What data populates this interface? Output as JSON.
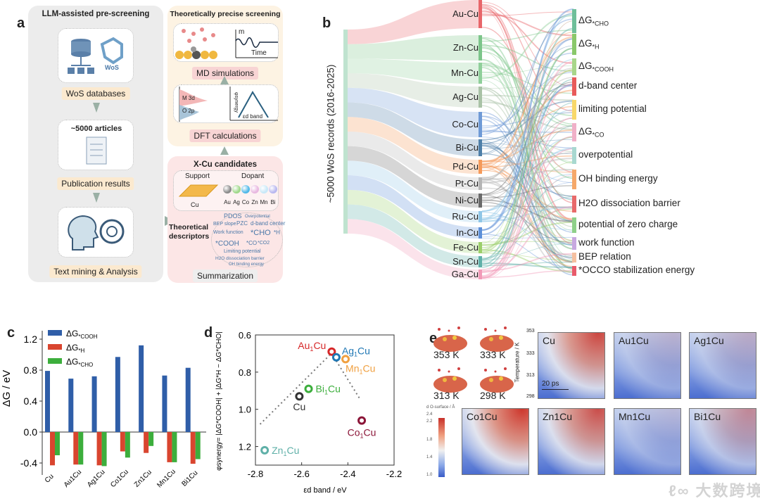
{
  "panel_labels": {
    "a": "a",
    "b": "b",
    "c": "c",
    "d": "d",
    "e": "e"
  },
  "panel_a": {
    "prescreen_title": "LLM-assisted pre-screening",
    "wos_logo": "WoS",
    "wos_label": "WoS databases",
    "articles_title": "~5000 articles",
    "publication_label": "Publication results",
    "text_mining_label": "Text mining & Analysis",
    "screening_title": "Theoretically precise screening",
    "md_axis_y": "m",
    "md_axis_x": "Time",
    "md_label": "MD simulations",
    "pdos_m3d": "M 3d",
    "pdos_o2p": "O 2p",
    "volcano_y": "φsynergy",
    "volcano_x": "εd band",
    "dft_label": "DFT calculations",
    "candidates_title": "X-Cu candidates",
    "support_label": "Support",
    "support_metal": "Cu",
    "dopant_label": "Dopant",
    "dopants": [
      "Au",
      "Ag",
      "Co",
      "Zn",
      "Mn",
      "Bi"
    ],
    "dopant_colors": [
      "#8a8a8a",
      "#9fd88a",
      "#4fb8e8",
      "#e8b8e0",
      "#c8e8f8",
      "#b8b8f0"
    ],
    "descriptors_label": "Theoretical descriptors",
    "cloud": [
      "PDOS",
      "Overpotential",
      "BEP slope",
      "PZC",
      "d-band center",
      "Work function",
      "*CHO",
      "*H",
      "*CO",
      "*COOH",
      "Limiting potential",
      "H2O dissociation barrier",
      "*CO2",
      "OH binding energy"
    ],
    "summarization_label": "Summarization"
  },
  "panel_b": {
    "axis_label": "~5000 WoS records (2016-2025)",
    "left_nodes": [
      "Au-Cu",
      "Zn-Cu",
      "Mn-Cu",
      "Ag-Cu",
      "Co-Cu",
      "Bi-Cu",
      "Pd-Cu",
      "Pt-Cu",
      "Ni-Cu",
      "Ru-Cu",
      "In-Cu",
      "Fe-Cu",
      "Sn-Cu",
      "Ga-Cu"
    ],
    "left_colors": [
      "#e8666a",
      "#7cc58a",
      "#8fcf9a",
      "#a9c2a6",
      "#6f9ad6",
      "#4e7fa8",
      "#f59a5a",
      "#b5b5b5",
      "#6a6a6a",
      "#8fc6e6",
      "#5d8fd8",
      "#9ccf6a",
      "#5fb0a8",
      "#f29ab8"
    ],
    "right_nodes": [
      {
        "base": "ΔG",
        "sub": "*CHO"
      },
      {
        "base": "ΔG",
        "sub": "*H"
      },
      {
        "base": "ΔG",
        "sub": "*COOH"
      },
      {
        "base": "d-band center",
        "sub": ""
      },
      {
        "base": "limiting potential",
        "sub": ""
      },
      {
        "base": "ΔG",
        "sub": "*CO"
      },
      {
        "base": "overpotential",
        "sub": ""
      },
      {
        "base": "OH binding energy",
        "sub": ""
      },
      {
        "base": "H2O dissociation barrier",
        "sub": ""
      },
      {
        "base": "potential of zero charge",
        "sub": ""
      },
      {
        "base": "work function",
        "sub": ""
      },
      {
        "base": "BEP relation",
        "sub": ""
      },
      {
        "base": "*OCCO stabilization energy",
        "sub": ""
      }
    ],
    "right_colors": [
      "#6fbf9a",
      "#8ac86a",
      "#a8d68a",
      "#e85a5a",
      "#f8d86a",
      "#f0b0c8",
      "#a8d8d0",
      "#f5a86a",
      "#e86a6a",
      "#8fd08a",
      "#c8a8e0",
      "#f5c0a0",
      "#e85a6a"
    ]
  },
  "chart_data": [
    {
      "type": "bar",
      "panel": "c",
      "categories": [
        "Cu",
        "Au1Cu",
        "Ag1Cu",
        "Co1Cu",
        "Zn1Cu",
        "Mn1Cu",
        "Bi1Cu"
      ],
      "series": [
        {
          "name": "ΔG*COOH",
          "color": "#2f5ea8",
          "values": [
            0.79,
            0.69,
            0.72,
            0.97,
            1.12,
            0.73,
            0.83
          ]
        },
        {
          "name": "ΔG*H",
          "color": "#d9452f",
          "values": [
            -0.43,
            -0.42,
            -0.43,
            -0.25,
            -0.27,
            -0.39,
            -0.41
          ]
        },
        {
          "name": "ΔG*CHO",
          "color": "#3cae3c",
          "values": [
            -0.3,
            -0.42,
            -0.44,
            -0.33,
            -0.18,
            -0.39,
            -0.35
          ]
        }
      ],
      "legend": [
        {
          "base": "ΔG",
          "sub": "*COOH"
        },
        {
          "base": "ΔG",
          "sub": "*H"
        },
        {
          "base": "ΔG",
          "sub": "*CHO"
        }
      ],
      "ylabel": "ΔG / eV",
      "ylim": [
        -0.45,
        1.35
      ],
      "yticks": [
        "1.2",
        "0.8",
        "0.4",
        "0.0",
        "-0.4"
      ],
      "ytick_values": [
        1.2,
        0.8,
        0.4,
        0.0,
        -0.4
      ],
      "legend_position": "top-left"
    },
    {
      "type": "scatter",
      "panel": "d",
      "points": [
        {
          "label": "Au",
          "sub": "1",
          "rest": "Cu",
          "x": -2.47,
          "y": 0.69,
          "color": "#d62728"
        },
        {
          "label": "Ag",
          "sub": "1",
          "rest": "Cu",
          "x": -2.45,
          "y": 0.72,
          "color": "#1f77b4"
        },
        {
          "label": "Mn",
          "sub": "1",
          "rest": "Cu",
          "x": -2.41,
          "y": 0.73,
          "color": "#f0a040"
        },
        {
          "label": "Bi",
          "sub": "1",
          "rest": "Cu",
          "x": -2.57,
          "y": 0.89,
          "color": "#3cae3c"
        },
        {
          "label": "Cu",
          "sub": "",
          "rest": "",
          "x": -2.61,
          "y": 0.93,
          "color": "#333333"
        },
        {
          "label": "Co",
          "sub": "1",
          "rest": "Cu",
          "x": -2.34,
          "y": 1.06,
          "color": "#8b1538"
        },
        {
          "label": "Zn",
          "sub": "1",
          "rest": "Cu",
          "x": -2.76,
          "y": 1.22,
          "color": "#5fb0a8"
        }
      ],
      "trend_lines": [
        [
          [
            -2.78,
            1.08
          ],
          [
            -2.48,
            0.71
          ]
        ],
        [
          [
            -2.46,
            0.72
          ],
          [
            -2.35,
            0.94
          ]
        ]
      ],
      "xlim": [
        -2.8,
        -2.2
      ],
      "ylim": [
        0.6,
        1.3
      ],
      "y_inverted": true,
      "xticks": [
        "-2.8",
        "-2.6",
        "-2.4",
        "-2.2"
      ],
      "xtick_values": [
        -2.8,
        -2.6,
        -2.4,
        -2.2
      ],
      "yticks": [
        "0.6",
        "0.8",
        "1.0",
        "1.2"
      ],
      "ytick_values": [
        0.6,
        0.8,
        1.0,
        1.2
      ],
      "xlabel": "εd band / eV",
      "ylabel": "φsynergy= |ΔG*COOH| + |ΔG*H − ΔG*CHO|"
    }
  ],
  "panel_e": {
    "snapshots": [
      "353 K",
      "333 K",
      "313 K",
      "298 K"
    ],
    "maps": [
      {
        "label": "Cu",
        "red": 0.9
      },
      {
        "label": "Au1Cu",
        "red": 0.15
      },
      {
        "label": "Ag1Cu",
        "red": 0.2
      },
      {
        "label": "Co1Cu",
        "red": 1.0
      },
      {
        "label": "Zn1Cu",
        "red": 0.85
      },
      {
        "label": "Mn1Cu",
        "red": 0.1
      },
      {
        "label": "Bi1Cu",
        "red": 0.45
      }
    ],
    "temp_axis": "Temperature / K",
    "temp_ticks": [
      "353",
      "333",
      "313",
      "298"
    ],
    "time_scale": "20 ps",
    "colorbar_label": "d O-surface / Å",
    "colorbar_ticks": [
      "2.4",
      "2.2",
      "1.8",
      "1.4",
      "1.0"
    ]
  },
  "watermark": "大数跨境"
}
